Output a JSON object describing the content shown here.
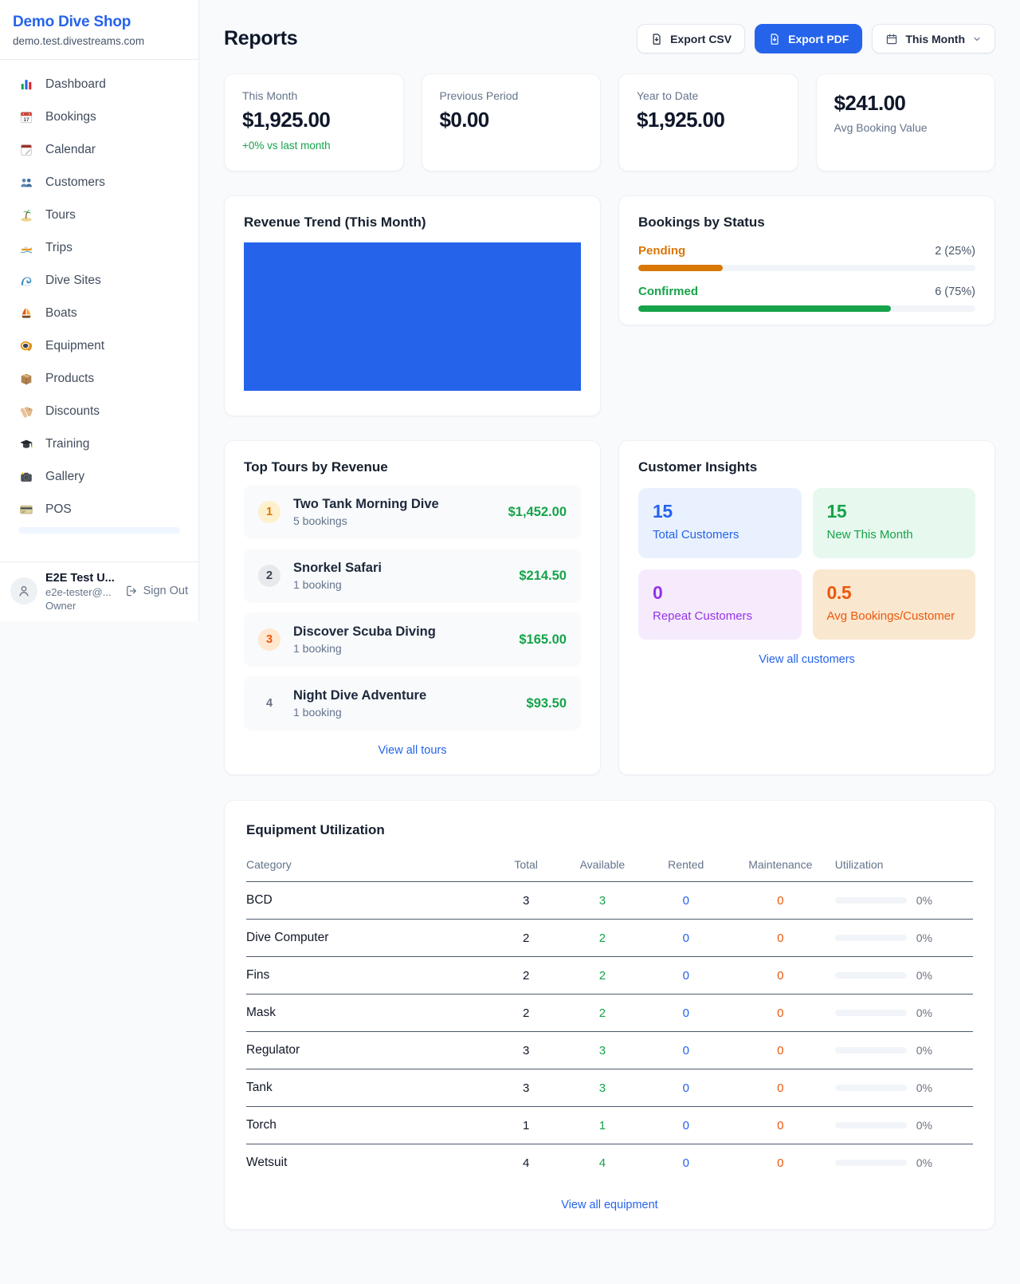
{
  "colors": {
    "accent_blue": "#2563eb",
    "success_green": "#16a34a",
    "pending_orange": "#d97706",
    "maintenance_orange": "#ea580c",
    "purple": "#9333ea",
    "page_background": "#f8fafc"
  },
  "sidebar": {
    "shop_name": "Demo Dive Shop",
    "domain": "demo.test.divestreams.com",
    "items": [
      {
        "icon": "dashboard-icon",
        "label": "Dashboard"
      },
      {
        "icon": "bookings-icon",
        "label": "Bookings"
      },
      {
        "icon": "calendar-icon",
        "label": "Calendar"
      },
      {
        "icon": "customers-icon",
        "label": "Customers"
      },
      {
        "icon": "tours-icon",
        "label": "Tours"
      },
      {
        "icon": "trips-icon",
        "label": "Trips"
      },
      {
        "icon": "dive-sites-icon",
        "label": "Dive Sites"
      },
      {
        "icon": "boats-icon",
        "label": "Boats"
      },
      {
        "icon": "equipment-icon",
        "label": "Equipment"
      },
      {
        "icon": "products-icon",
        "label": "Products"
      },
      {
        "icon": "discounts-icon",
        "label": "Discounts"
      },
      {
        "icon": "training-icon",
        "label": "Training"
      },
      {
        "icon": "gallery-icon",
        "label": "Gallery"
      },
      {
        "icon": "pos-icon",
        "label": "POS"
      }
    ],
    "user": {
      "name": "E2E Test U...",
      "email": "e2e-tester@...",
      "role": "Owner",
      "sign_out_label": "Sign Out"
    }
  },
  "header": {
    "title": "Reports",
    "export_csv_label": "Export CSV",
    "export_pdf_label": "Export PDF",
    "period_label": "This Month"
  },
  "stats": [
    {
      "label": "This Month",
      "value": "$1,925.00",
      "delta": "+0% vs last month"
    },
    {
      "label": "Previous Period",
      "value": "$0.00"
    },
    {
      "label": "Year to Date",
      "value": "$1,925.00"
    },
    {
      "label": "Avg Booking Value",
      "value": "$241.00"
    }
  ],
  "revenue_trend": {
    "title": "Revenue Trend (This Month)",
    "bar_color": "#2563eb"
  },
  "bookings_by_status": {
    "title": "Bookings by Status",
    "rows": [
      {
        "label": "Pending",
        "count_text": "2 (25%)",
        "pct": 25
      },
      {
        "label": "Confirmed",
        "count_text": "6 (75%)",
        "pct": 75
      }
    ]
  },
  "top_tours": {
    "title": "Top Tours by Revenue",
    "link_label": "View all tours",
    "rows": [
      {
        "rank": "1",
        "name": "Two Tank Morning Dive",
        "bookings": "5 bookings",
        "amount": "$1,452.00"
      },
      {
        "rank": "2",
        "name": "Snorkel Safari",
        "bookings": "1 booking",
        "amount": "$214.50"
      },
      {
        "rank": "3",
        "name": "Discover Scuba Diving",
        "bookings": "1 booking",
        "amount": "$165.00"
      },
      {
        "rank": "4",
        "name": "Night Dive Adventure",
        "bookings": "1 booking",
        "amount": "$93.50"
      }
    ]
  },
  "customer_insights": {
    "title": "Customer Insights",
    "link_label": "View all customers",
    "tiles": [
      {
        "value": "15",
        "label": "Total Customers"
      },
      {
        "value": "15",
        "label": "New This Month"
      },
      {
        "value": "0",
        "label": "Repeat Customers"
      },
      {
        "value": "0.5",
        "label": "Avg Bookings/Customer"
      }
    ]
  },
  "equipment": {
    "title": "Equipment Utilization",
    "link_label": "View all equipment",
    "columns": [
      "Category",
      "Total",
      "Available",
      "Rented",
      "Maintenance",
      "Utilization"
    ],
    "rows": [
      {
        "category": "BCD",
        "total": "3",
        "available": "3",
        "rented": "0",
        "maintenance": "0",
        "utilization": "0%",
        "utilization_pct": 0
      },
      {
        "category": "Dive Computer",
        "total": "2",
        "available": "2",
        "rented": "0",
        "maintenance": "0",
        "utilization": "0%",
        "utilization_pct": 0
      },
      {
        "category": "Fins",
        "total": "2",
        "available": "2",
        "rented": "0",
        "maintenance": "0",
        "utilization": "0%",
        "utilization_pct": 0
      },
      {
        "category": "Mask",
        "total": "2",
        "available": "2",
        "rented": "0",
        "maintenance": "0",
        "utilization": "0%",
        "utilization_pct": 0
      },
      {
        "category": "Regulator",
        "total": "3",
        "available": "3",
        "rented": "0",
        "maintenance": "0",
        "utilization": "0%",
        "utilization_pct": 0
      },
      {
        "category": "Tank",
        "total": "3",
        "available": "3",
        "rented": "0",
        "maintenance": "0",
        "utilization": "0%",
        "utilization_pct": 0
      },
      {
        "category": "Torch",
        "total": "1",
        "available": "1",
        "rented": "0",
        "maintenance": "0",
        "utilization": "0%",
        "utilization_pct": 0
      },
      {
        "category": "Wetsuit",
        "total": "4",
        "available": "4",
        "rented": "0",
        "maintenance": "0",
        "utilization": "0%",
        "utilization_pct": 0
      }
    ]
  }
}
